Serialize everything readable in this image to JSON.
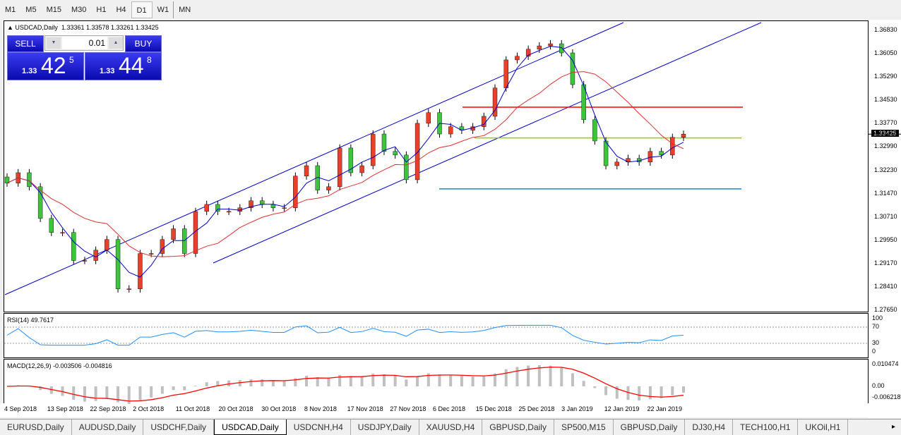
{
  "timeframes": [
    "M1",
    "M5",
    "M15",
    "M30",
    "H1",
    "H4",
    "D1",
    "W1",
    "MN"
  ],
  "active_timeframe": "D1",
  "chart": {
    "symbol_label": "USDCAD,Daily",
    "ohlc": "1.33361 1.33578 1.33261 1.33425",
    "current_price": "1.33425"
  },
  "trade_panel": {
    "sell_label": "SELL",
    "buy_label": "BUY",
    "lot": "0.01",
    "sell_big": "42",
    "sell_small": "1.33",
    "sell_sup": "5",
    "buy_big": "44",
    "buy_small": "1.33",
    "buy_sup": "8"
  },
  "price_axis": [
    "1.36830",
    "1.36050",
    "1.35290",
    "1.34530",
    "1.33770",
    "1.32990",
    "1.32230",
    "1.31470",
    "1.30710",
    "1.29950",
    "1.29170",
    "1.28410",
    "1.27650"
  ],
  "rsi": {
    "label": "RSI(14) 49.7617",
    "levels": [
      "100",
      "70",
      "30",
      "0"
    ]
  },
  "macd": {
    "label": "MACD(12,26,9) -0.003506 -0.004816",
    "levels": [
      "0.010474",
      "0.00",
      "-0.006218"
    ]
  },
  "dates": [
    "4 Sep 2018",
    "13 Sep 2018",
    "22 Sep 2018",
    "2 Oct 2018",
    "11 Oct 2018",
    "20 Oct 2018",
    "30 Oct 2018",
    "8 Nov 2018",
    "17 Nov 2018",
    "27 Nov 2018",
    "6 Dec 2018",
    "15 Dec 2018",
    "25 Dec 2018",
    "3 Jan 2019",
    "12 Jan 2019",
    "22 Jan 2019"
  ],
  "tabs": [
    "EURUSD,Daily",
    "AUDUSD,Daily",
    "USDCHF,Daily",
    "USDCAD,Daily",
    "USDCNH,H4",
    "USDJPY,Daily",
    "XAUUSD,H4",
    "GBPUSD,Daily",
    "SP500,M15",
    "GBPUSD,Daily",
    "DJ30,H4",
    "TECH100,H1",
    "UKOil,H1"
  ],
  "active_tab": "USDCAD,Daily",
  "colors": {
    "bull": "#e8402a",
    "bear": "#3dc43d",
    "ma_fast": "#0000cc",
    "ma_slow": "#e03030",
    "rsi": "#1e90ff",
    "macd_signal": "#ff0000",
    "macd_hist": "#c0c0c0",
    "resistance": "#ff0000",
    "pivot": "#99cc00",
    "support": "#1e7fe0",
    "channel": "#0000cc"
  },
  "chart_data": {
    "type": "candlestick",
    "ylim": [
      1.2765,
      1.3683
    ],
    "closes": [
      1.3182,
      1.3216,
      1.317,
      1.3066,
      1.302,
      1.302,
      1.2928,
      1.2928,
      1.2962,
      1.2997,
      1.2835,
      1.2835,
      1.2951,
      1.2951,
      1.2997,
      1.3032,
      1.2951,
      1.3089,
      1.3112,
      1.3089,
      1.3089,
      1.3101,
      1.3124,
      1.3112,
      1.3101,
      1.3101,
      1.3205,
      1.3239,
      1.3159,
      1.317,
      1.3297,
      1.3216,
      1.3239,
      1.3343,
      1.3286,
      1.3274,
      1.3193,
      1.3378,
      1.3413,
      1.3343,
      1.3367,
      1.3355,
      1.3367,
      1.3401,
      1.3494,
      1.3586,
      1.3598,
      1.3621,
      1.3632,
      1.3639,
      1.3609,
      1.3505,
      1.339,
      1.332,
      1.3239,
      1.3251,
      1.3263,
      1.3251,
      1.3286,
      1.3274,
      1.3332,
      1.33425
    ],
    "horizontal_levels": {
      "resistance": 1.3431,
      "pivot": 1.333,
      "support": 1.3163
    }
  }
}
